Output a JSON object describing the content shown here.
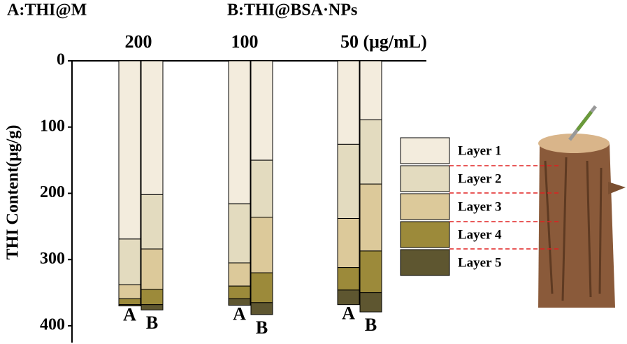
{
  "chart_data": {
    "type": "stacked_bar",
    "annotations": [
      "A:THI@M",
      "B:THI@BSA·NPs"
    ],
    "groups": [
      "200",
      "100",
      "50 (μg/mL)"
    ],
    "categories": [
      "A",
      "B",
      "A",
      "B",
      "A",
      "B"
    ],
    "y_label": "THI Content(μg/g)",
    "ylim": [
      0,
      400
    ],
    "yticks": [
      0,
      100,
      200,
      300,
      400
    ],
    "y_inverted": true,
    "series": [
      {
        "name": "Layer 1",
        "color": "#f3ecdd",
        "values": [
          269,
          202,
          216,
          150,
          126,
          89
        ]
      },
      {
        "name": "Layer 2",
        "color": "#e3dbbf",
        "values": [
          69,
          82,
          89,
          86,
          112,
          97
        ]
      },
      {
        "name": "Layer 3",
        "color": "#dcc99a",
        "values": [
          21,
          61,
          35,
          84,
          74,
          101
        ]
      },
      {
        "name": "Layer 4",
        "color": "#9c8a3a",
        "values": [
          9,
          23,
          19,
          45,
          34,
          63
        ]
      },
      {
        "name": "Layer 5",
        "color": "#5e5630",
        "values": [
          2,
          8,
          10,
          18,
          22,
          29
        ]
      }
    ]
  }
}
